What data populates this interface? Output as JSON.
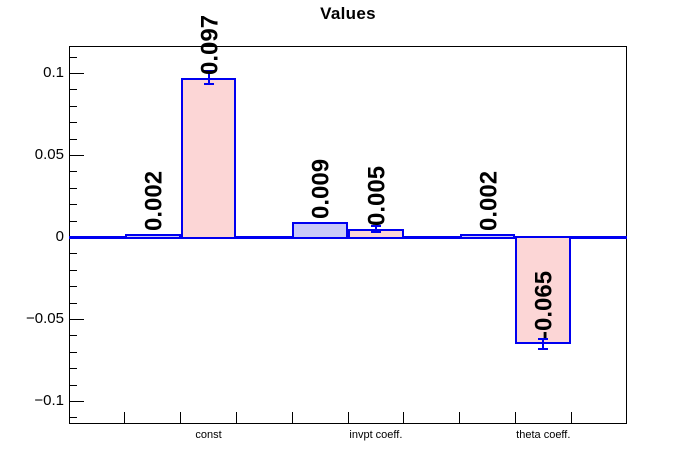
{
  "page": {
    "title": "Values"
  },
  "chart_data": {
    "type": "bar",
    "title": "Values",
    "xlabel": "",
    "ylabel": "",
    "ylim": [
      -0.114,
      0.1165
    ],
    "grid": false,
    "legend": "none",
    "y_axis": {
      "major_ticks": [
        0.1,
        0.05,
        0,
        -0.05,
        -0.1
      ],
      "major_tick_labels": [
        "0.1",
        "0.05",
        "0",
        "−0.05",
        "−0.1"
      ],
      "minor_tick_step": 0.01,
      "minor_tick_range": [
        -0.11,
        0.11
      ]
    },
    "x_axis": {
      "n_bins": 10,
      "tick_labels": [
        {
          "label": "const",
          "bin_center": 2.5
        },
        {
          "label": "invpt coeff.",
          "bin_center": 5.5
        },
        {
          "label": "theta coeff.",
          "bin_center": 8.5
        }
      ]
    },
    "bars": [
      {
        "bin": 1,
        "value": 0.002,
        "label": "0.002",
        "series": "blue",
        "error": null
      },
      {
        "bin": 2,
        "value": 0.097,
        "label": "0.097",
        "series": "pink",
        "error": 0.004
      },
      {
        "bin": 4,
        "value": 0.009,
        "label": "0.009",
        "series": "blue",
        "error": null
      },
      {
        "bin": 5,
        "value": 0.005,
        "label": "0.005",
        "series": "pink",
        "error": 0.002
      },
      {
        "bin": 7,
        "value": 0.002,
        "label": "0.002",
        "series": "blue",
        "error": null
      },
      {
        "bin": 8,
        "value": -0.065,
        "label": "-0.065",
        "series": "pink",
        "error": 0.003
      }
    ],
    "colors": {
      "bar_border": "#0000f0",
      "blue_fill": "#cacaf8",
      "pink_fill": "#fcd6d6",
      "error_bar": "#0000f0",
      "zero_line": "#0000f0",
      "frame": "#000000",
      "text": "#000000"
    }
  }
}
